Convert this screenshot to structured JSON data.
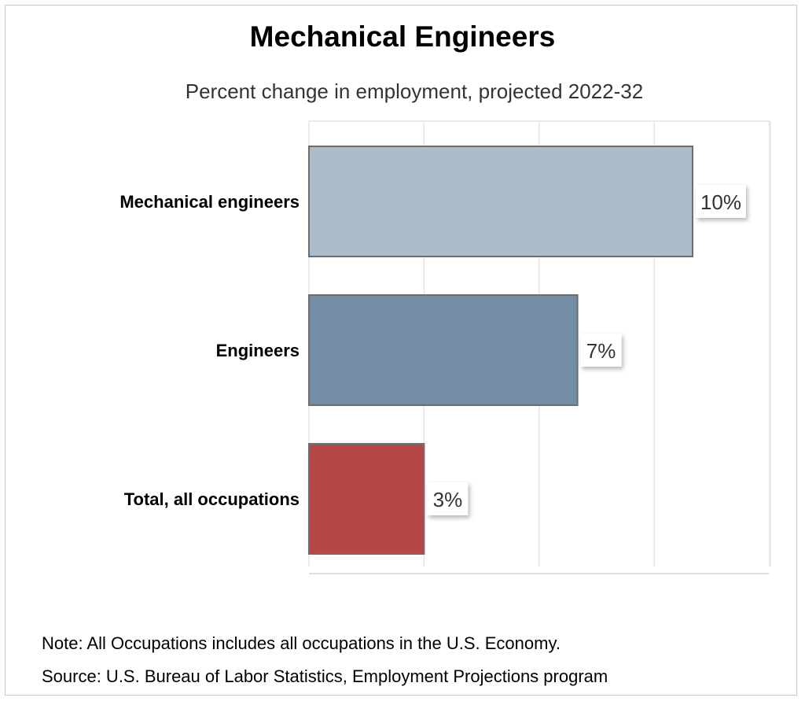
{
  "chart_data": {
    "type": "bar",
    "orientation": "horizontal",
    "title": "Mechanical Engineers",
    "subtitle": "Percent change in employment, projected 2022-32",
    "categories": [
      "Mechanical engineers",
      "Engineers",
      "Total, all occupations"
    ],
    "values": [
      10,
      7,
      3
    ],
    "value_labels": [
      "10%",
      "7%",
      "3%"
    ],
    "colors": [
      "#adbcc9",
      "#728da4",
      "#b54846"
    ],
    "xlim": [
      0,
      12
    ],
    "grid": true,
    "xlabel": "",
    "ylabel": ""
  },
  "notes": {
    "note": "Note: All Occupations includes all occupations in the U.S. Economy.",
    "source": "Source: U.S. Bureau of Labor Statistics, Employment Projections program"
  }
}
